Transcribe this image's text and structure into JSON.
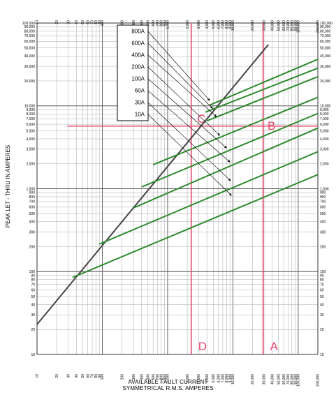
{
  "chart_data": {
    "type": "line",
    "x_scale": "log",
    "y_scale": "log",
    "xlim": [
      10,
      200000
    ],
    "ylim": [
      10,
      100000
    ],
    "xlabel": [
      "AVAILABLE FAULT CURRENT",
      "SYMMETRICAL  R.M.S.  AMPERES"
    ],
    "ylabel": "PEAK LET - THRU IN AMPERES",
    "grid": true,
    "x_ticks": [
      {
        "v": 10,
        "label": "10"
      },
      {
        "v": 20,
        "label": "20"
      },
      {
        "v": 30,
        "label": "30"
      },
      {
        "v": 40,
        "label": "40"
      },
      {
        "v": 50,
        "label": "50"
      },
      {
        "v": 60,
        "label": "60"
      },
      {
        "v": 70,
        "label": "70"
      },
      {
        "v": 80,
        "label": "80"
      },
      {
        "v": 90,
        "label": "90"
      },
      {
        "v": 100,
        "label": "100"
      },
      {
        "v": 200,
        "label": "200"
      },
      {
        "v": 300,
        "label": "300"
      },
      {
        "v": 400,
        "label": "400"
      },
      {
        "v": 500,
        "label": "500"
      },
      {
        "v": 600,
        "label": "600"
      },
      {
        "v": 700,
        "label": "700"
      },
      {
        "v": 800,
        "label": "800"
      },
      {
        "v": 900,
        "label": "900"
      },
      {
        "v": 1000,
        "label": "1,000"
      },
      {
        "v": 2000,
        "label": "2,000"
      },
      {
        "v": 3000,
        "label": "3,000"
      },
      {
        "v": 4000,
        "label": "4,000"
      },
      {
        "v": 5000,
        "label": "5,000"
      },
      {
        "v": 6000,
        "label": "6,000"
      },
      {
        "v": 7000,
        "label": "7,000"
      },
      {
        "v": 8000,
        "label": "8,000"
      },
      {
        "v": 9000,
        "label": "9,000"
      },
      {
        "v": 10000,
        "label": "10,000"
      },
      {
        "v": 20000,
        "label": "20,000"
      },
      {
        "v": 30000,
        "label": "30,000"
      },
      {
        "v": 40000,
        "label": "40,000"
      },
      {
        "v": 50000,
        "label": "50,000"
      },
      {
        "v": 60000,
        "label": "60,000"
      },
      {
        "v": 70000,
        "label": "70,000"
      },
      {
        "v": 80000,
        "label": "80,000"
      },
      {
        "v": 90000,
        "label": "90,000"
      },
      {
        "v": 100000,
        "label": "100,000"
      },
      {
        "v": 200000,
        "label": "200,000"
      }
    ],
    "y_ticks": [
      {
        "v": 10,
        "label": "10"
      },
      {
        "v": 20,
        "label": "20"
      },
      {
        "v": 30,
        "label": "30"
      },
      {
        "v": 40,
        "label": "40"
      },
      {
        "v": 50,
        "label": "50"
      },
      {
        "v": 60,
        "label": "60"
      },
      {
        "v": 70,
        "label": "70"
      },
      {
        "v": 80,
        "label": "80"
      },
      {
        "v": 90,
        "label": "90"
      },
      {
        "v": 100,
        "label": "100"
      },
      {
        "v": 200,
        "label": "200"
      },
      {
        "v": 300,
        "label": "300"
      },
      {
        "v": 400,
        "label": "400"
      },
      {
        "v": 500,
        "label": "500"
      },
      {
        "v": 600,
        "label": "600"
      },
      {
        "v": 700,
        "label": "700"
      },
      {
        "v": 800,
        "label": "800"
      },
      {
        "v": 900,
        "label": "900"
      },
      {
        "v": 1000,
        "label": "1,000"
      },
      {
        "v": 2000,
        "label": "2,000"
      },
      {
        "v": 3000,
        "label": "3,000"
      },
      {
        "v": 4000,
        "label": "4,000"
      },
      {
        "v": 5000,
        "label": "5,000"
      },
      {
        "v": 6000,
        "label": "6,000"
      },
      {
        "v": 7000,
        "label": "7,000"
      },
      {
        "v": 8000,
        "label": "8,000"
      },
      {
        "v": 9000,
        "label": "9,000"
      },
      {
        "v": 10000,
        "label": "10,000"
      },
      {
        "v": 20000,
        "label": "20,000"
      },
      {
        "v": 30000,
        "label": "30,000"
      },
      {
        "v": 40000,
        "label": "40,000"
      },
      {
        "v": 50000,
        "label": "50,000"
      },
      {
        "v": 60000,
        "label": "60,000"
      },
      {
        "v": 70000,
        "label": "70,000"
      },
      {
        "v": 80000,
        "label": "80,000"
      },
      {
        "v": 90000,
        "label": "90,000"
      },
      {
        "v": 100000,
        "label": "100,000"
      }
    ],
    "max_line": {
      "color": "#444444",
      "points": [
        [
          10,
          23
        ],
        [
          35000,
          55000
        ]
      ]
    },
    "series": [
      {
        "name": "800A",
        "color": "#2e8b2e",
        "points": [
          [
            4400,
            10200
          ],
          [
            200000,
            36500
          ]
        ],
        "arrow_to": [
          4400,
          11600
        ]
      },
      {
        "name": "600A",
        "color": "#2e8b2e",
        "points": [
          [
            3800,
            8400
          ],
          [
            200000,
            28500
          ]
        ],
        "arrow_to": [
          4900,
          9300
        ]
      },
      {
        "name": "400A",
        "color": "#2e8b2e",
        "points": [
          [
            4000,
            6600
          ],
          [
            200000,
            22500
          ]
        ],
        "arrow_to": [
          5600,
          7400
        ]
      },
      {
        "name": "200A",
        "color": "#2e8b2e",
        "points": [
          [
            600,
            1950
          ],
          [
            200000,
            12700
          ]
        ],
        "arrow_to": [
          6300,
          4400
        ]
      },
      {
        "name": "100A",
        "color": "#2e8b2e",
        "points": [
          [
            400,
            1050
          ],
          [
            200000,
            8100
          ]
        ],
        "arrow_to": [
          8000,
          3100
        ]
      },
      {
        "name": "60A",
        "color": "#2e8b2e",
        "points": [
          [
            290,
            580
          ],
          [
            200000,
            5400
          ]
        ],
        "arrow_to": [
          9000,
          2100
        ]
      },
      {
        "name": "30A",
        "color": "#2e8b2e",
        "points": [
          [
            90,
            215
          ],
          [
            200000,
            2800
          ]
        ],
        "arrow_to": [
          9200,
          1250
        ]
      },
      {
        "name": "10A",
        "color": "#2e8b2e",
        "points": [
          [
            35,
            85
          ],
          [
            200000,
            1480
          ]
        ],
        "arrow_to": [
          9500,
          830
        ]
      }
    ],
    "reference_lines": {
      "color": "#e8476b",
      "horizontal": [
        {
          "y": 5700,
          "x_from": 29,
          "x_to": 200000
        }
      ],
      "vertical": [
        {
          "x": 2300,
          "label": "D"
        },
        {
          "x": 29000,
          "label": "A"
        }
      ],
      "points": [
        {
          "label": "B",
          "x": 39000,
          "y": 5800
        },
        {
          "label": "C",
          "x": 3300,
          "y": 7000
        }
      ]
    }
  }
}
